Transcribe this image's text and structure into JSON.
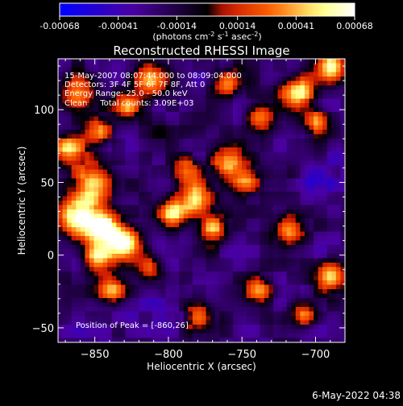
{
  "colorbar": {
    "tick_labels": [
      "-0.00068",
      "-0.00041",
      "-0.00014",
      "0.00014",
      "0.00041",
      "0.00068"
    ],
    "tick_values": [
      -0.00068,
      -0.00041,
      -0.00014,
      0.00014,
      0.00041,
      0.00068
    ],
    "range": [
      -0.00068,
      0.00068
    ],
    "unit_label": "(photons cm-2 s-1 asec-2)",
    "unit_parts": [
      "(photons cm",
      "-2",
      " s",
      "-1",
      " asec",
      "-2",
      ")"
    ]
  },
  "chart_data": {
    "type": "heatmap",
    "title": "Reconstructed RHESSI Image",
    "xlabel": "Heliocentric X (arcsec)",
    "ylabel": "Heliocentric Y (arcsec)",
    "xlim": [
      -875,
      -680
    ],
    "ylim": [
      -60,
      135
    ],
    "x_ticks": [
      -850,
      -800,
      -750,
      -700
    ],
    "y_ticks": [
      -50,
      0,
      50,
      100
    ],
    "x_tick_labels": [
      "−850",
      "−800",
      "−750",
      "−700"
    ],
    "y_tick_labels": [
      "−50",
      "0",
      "50",
      "100"
    ],
    "annotations": [
      "15-May-2007 08:07:44.000 to 08:09:04.000",
      "Detectors: 3F 4F 5F 6F 7F 8F, Att 0",
      "Energy Range: 25.0 - 50.0 keV",
      "Clean     Total counts: 3.09E+03"
    ],
    "peak_label": "Position of Peak = [-860,26]",
    "peak_position": [
      -860,
      26
    ],
    "colormap": [
      "#0000ff",
      "#4b00a0",
      "#000000",
      "#c81400",
      "#ff6400",
      "#ffff80",
      "#ffffff"
    ],
    "blobs": [
      {
        "x": -860,
        "y": 26,
        "v": 0.00068,
        "r": 14
      },
      {
        "x": -842,
        "y": 18,
        "v": 0.00066,
        "r": 11
      },
      {
        "x": -829,
        "y": 8,
        "v": 0.00058,
        "r": 11
      },
      {
        "x": -848,
        "y": -2,
        "v": 0.0005,
        "r": 10
      },
      {
        "x": -838,
        "y": -24,
        "v": 0.00044,
        "r": 10
      },
      {
        "x": -852,
        "y": 50,
        "v": 0.0005,
        "r": 13
      },
      {
        "x": -868,
        "y": 72,
        "v": 0.0004,
        "r": 11
      },
      {
        "x": -848,
        "y": 85,
        "v": 0.00036,
        "r": 10
      },
      {
        "x": -862,
        "y": 110,
        "v": 0.00044,
        "r": 12
      },
      {
        "x": -812,
        "y": 120,
        "v": 0.00036,
        "r": 12
      },
      {
        "x": -828,
        "y": 102,
        "v": 0.0003,
        "r": 9
      },
      {
        "x": -782,
        "y": 38,
        "v": 0.00054,
        "r": 11
      },
      {
        "x": -797,
        "y": 28,
        "v": 0.0004,
        "r": 10
      },
      {
        "x": -770,
        "y": 18,
        "v": 0.00046,
        "r": 10
      },
      {
        "x": -748,
        "y": 52,
        "v": 0.0004,
        "r": 10
      },
      {
        "x": -760,
        "y": 64,
        "v": 0.00044,
        "r": 10
      },
      {
        "x": -788,
        "y": 58,
        "v": 0.00034,
        "r": 9
      },
      {
        "x": -738,
        "y": 95,
        "v": 0.00036,
        "r": 10
      },
      {
        "x": -712,
        "y": 112,
        "v": 0.00056,
        "r": 11
      },
      {
        "x": -690,
        "y": 130,
        "v": 0.0005,
        "r": 10
      },
      {
        "x": -700,
        "y": 92,
        "v": 0.00036,
        "r": 9
      },
      {
        "x": -718,
        "y": 18,
        "v": 0.00048,
        "r": 10
      },
      {
        "x": -690,
        "y": -14,
        "v": 0.00046,
        "r": 10
      },
      {
        "x": -708,
        "y": -40,
        "v": 0.0003,
        "r": 9
      },
      {
        "x": -738,
        "y": -24,
        "v": 0.00028,
        "r": 9
      },
      {
        "x": -780,
        "y": -42,
        "v": 0.00026,
        "r": 10
      },
      {
        "x": -812,
        "y": -8,
        "v": 0.00026,
        "r": 9
      },
      {
        "x": -760,
        "y": 118,
        "v": 0.0003,
        "r": 9
      },
      {
        "x": -805,
        "y": 88,
        "v": -0.0001,
        "r": 12
      },
      {
        "x": -780,
        "y": 88,
        "v": -0.00018,
        "r": 10
      },
      {
        "x": -740,
        "y": 40,
        "v": -0.00022,
        "r": 9
      },
      {
        "x": -700,
        "y": 54,
        "v": -0.00048,
        "r": 11
      },
      {
        "x": -685,
        "y": 70,
        "v": -0.0004,
        "r": 10
      },
      {
        "x": -690,
        "y": 30,
        "v": -0.0003,
        "r": 9
      },
      {
        "x": -830,
        "y": -40,
        "v": -0.00036,
        "r": 12
      },
      {
        "x": -810,
        "y": -28,
        "v": -0.00044,
        "r": 9
      },
      {
        "x": -795,
        "y": -42,
        "v": -0.0004,
        "r": 9
      },
      {
        "x": -848,
        "y": -52,
        "v": -0.0003,
        "r": 12
      },
      {
        "x": -745,
        "y": 0,
        "v": -0.00018,
        "r": 9
      },
      {
        "x": -745,
        "y": 115,
        "v": -0.00018,
        "r": 9
      },
      {
        "x": -760,
        "y": -52,
        "v": -0.00014,
        "r": 10
      },
      {
        "x": -818,
        "y": 48,
        "v": -0.00012,
        "r": 9
      }
    ]
  },
  "footer_date": "6-May-2022 04:38"
}
